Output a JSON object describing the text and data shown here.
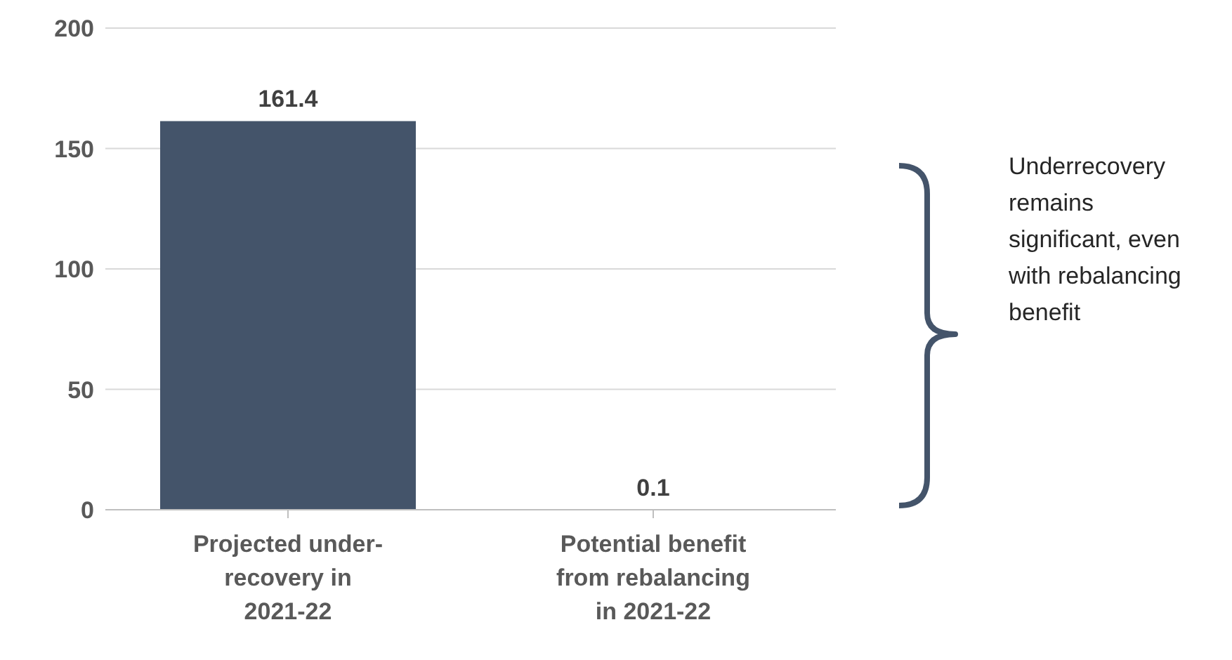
{
  "chart_data": {
    "type": "bar",
    "categories": [
      "Projected under-recovery in 2021-22",
      "Potential benefit from rebalancing in 2021-22"
    ],
    "values": [
      161.4,
      0.1
    ],
    "color": "#44546a",
    "ylim": [
      0,
      200
    ],
    "yticks": [
      0,
      50,
      100,
      150,
      200
    ],
    "grid": "y",
    "data_labels": true,
    "annotations": [
      "Underrecovery remains significant, even with rebalancing benefit"
    ]
  }
}
